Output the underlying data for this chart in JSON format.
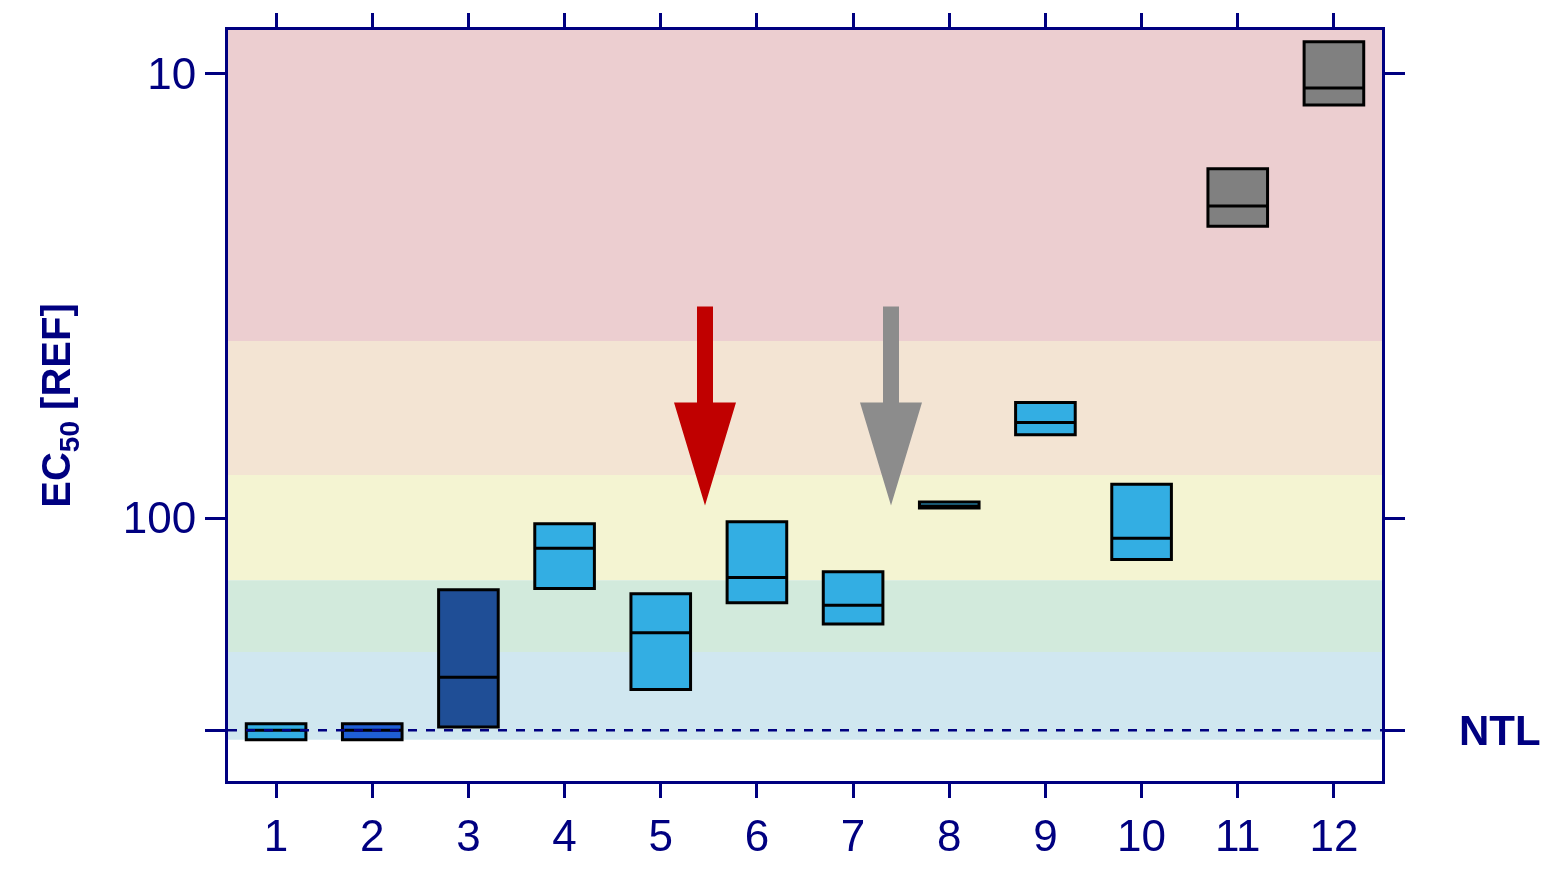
{
  "chart_data": {
    "type": "box",
    "ylabel": "EC$_{50}$ [REF]",
    "log": true,
    "x": [
      1,
      2,
      3,
      4,
      5,
      6,
      7,
      8,
      9,
      10,
      11,
      12
    ],
    "xlim": [
      0.5,
      12.5
    ],
    "xticks": [
      1,
      2,
      3,
      4,
      5,
      6,
      7,
      8,
      9,
      10,
      11,
      12
    ],
    "ylim": [
      390,
      8
    ],
    "yticks": [
      10,
      100,
      {
        "value": 300,
        "label": null
      }
    ],
    "boxes": [
      {
        "low": 290,
        "q1": 290,
        "median": 300,
        "q3": 315,
        "high": 315
      },
      {
        "low": 290,
        "q1": 290,
        "median": 300,
        "q3": 315,
        "high": 315
      },
      {
        "low": 145,
        "q1": 145,
        "median": 228,
        "q3": 295,
        "high": 295
      },
      {
        "low": 103,
        "q1": 103,
        "median": 117,
        "q3": 144,
        "high": 144
      },
      {
        "low": 148,
        "q1": 148,
        "median": 181,
        "q3": 243,
        "high": 243
      },
      {
        "low": 102,
        "q1": 102,
        "median": 136,
        "q3": 155,
        "high": 155
      },
      {
        "low": 132,
        "q1": 132,
        "median": 157,
        "q3": 173,
        "high": 173
      },
      {
        "low": 92,
        "q1": 92,
        "median": 94,
        "q3": 95,
        "high": 95
      },
      {
        "low": 55,
        "q1": 55,
        "median": 61,
        "q3": 65,
        "high": 65
      },
      {
        "low": 84,
        "q1": 84,
        "median": 111,
        "q3": 124,
        "high": 124
      },
      {
        "low": 16.4,
        "q1": 16.4,
        "median": 19.9,
        "q3": 22.1,
        "high": 22.1
      },
      {
        "low": 8.5,
        "q1": 8.5,
        "median": 10.8,
        "q3": 11.8,
        "high": 11.8
      }
    ],
    "colors": [
      "#33aee3",
      "#1f5fd6",
      "#1f4e96",
      "#33aee3",
      "#33aee3",
      "#33aee3",
      "#33aee3",
      "#33aee3",
      "#33aee3",
      "#33aee3",
      "#808080",
      "#808080"
    ],
    "bands": [
      {
        "axis": "y",
        "from": 8,
        "to": 40,
        "color": "#ecced0"
      },
      {
        "axis": "y",
        "from": 40,
        "to": 80,
        "color": "#f3e4d3"
      },
      {
        "axis": "y",
        "from": 80,
        "to": 138,
        "color": "#f4f4d2"
      },
      {
        "axis": "y",
        "from": 138,
        "to": 200,
        "color": "#d2eadc"
      },
      {
        "axis": "y",
        "from": 200,
        "to": 315,
        "color": "#d0e7f0"
      }
    ],
    "ref_lines": [
      {
        "axis": "y",
        "value": 300,
        "label": "NTL",
        "color": "#000080",
        "line_style": "dashed"
      }
    ],
    "grid": false
  }
}
